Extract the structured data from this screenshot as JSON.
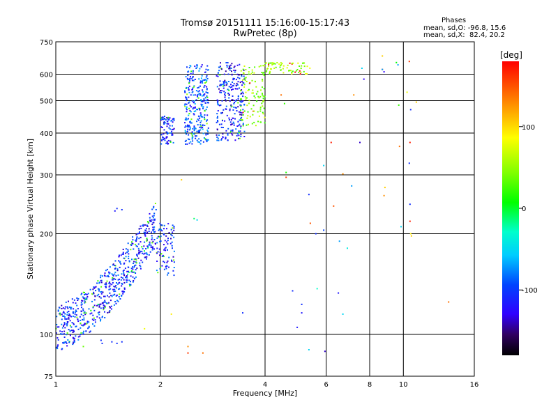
{
  "chart_data": {
    "type": "scatter",
    "title": "Tromsø 20151111 15:16:00-15:17:43",
    "subtitle": "RwPretec (8p)",
    "xlabel": "Frequency [MHz]",
    "ylabel": "Stationary phase Virtual Height [km]",
    "x_scale": "log",
    "y_scale": "log",
    "xlim": [
      1,
      16
    ],
    "ylim": [
      75,
      750
    ],
    "x_ticks": [
      1,
      2,
      4,
      6,
      8,
      10,
      16
    ],
    "y_ticks": [
      75,
      100,
      200,
      300,
      400,
      500,
      600,
      750
    ],
    "grid": true,
    "phase_stats": {
      "heading": "Phases",
      "line_o": "mean, sd,O: -96.8, 15.6",
      "line_x": "mean, sd,X:  82.4, 20.2"
    },
    "colorbar": {
      "label": "[deg]",
      "ticks": [
        100,
        0,
        -100
      ],
      "range": [
        -180,
        180
      ]
    },
    "clusters": [
      {
        "trace": "low_layer",
        "x": [
          1.0,
          1.95
        ],
        "y": [
          103,
          262
        ],
        "phase": -100,
        "n": 650
      },
      {
        "trace": "low_layer_tail",
        "x": [
          1.95,
          2.2
        ],
        "y": [
          150,
          215
        ],
        "phase": -100,
        "n": 90
      },
      {
        "trace": "f_layer_a",
        "x": [
          2.0,
          2.2
        ],
        "y": [
          370,
          450
        ],
        "phase": -100,
        "n": 80
      },
      {
        "trace": "f_layer_b",
        "x": [
          2.35,
          2.75
        ],
        "y": [
          370,
          640
        ],
        "phase": -85,
        "n": 300
      },
      {
        "trace": "f_layer_c",
        "x": [
          2.9,
          3.5
        ],
        "y": [
          380,
          650
        ],
        "phase": -105,
        "n": 260
      },
      {
        "trace": "f_layer_d",
        "x": [
          3.4,
          4.0
        ],
        "y": [
          420,
          640
        ],
        "phase": 50,
        "n": 110
      },
      {
        "trace": "f_layer_top",
        "x": [
          4.0,
          5.4
        ],
        "y": [
          600,
          650
        ],
        "phase": 60,
        "n": 70
      }
    ],
    "isolated_points": [
      {
        "x": 4.55,
        "y": 490,
        "phase": 20
      },
      {
        "x": 4.6,
        "y": 305,
        "phase": 10
      },
      {
        "x": 4.6,
        "y": 295,
        "phase": 160
      },
      {
        "x": 4.45,
        "y": 520,
        "phase": 140
      },
      {
        "x": 5.35,
        "y": 262,
        "phase": -100
      },
      {
        "x": 5.4,
        "y": 215,
        "phase": 150
      },
      {
        "x": 5.6,
        "y": 200,
        "phase": -100
      },
      {
        "x": 5.9,
        "y": 205,
        "phase": -90
      },
      {
        "x": 5.9,
        "y": 320,
        "phase": -40
      },
      {
        "x": 6.2,
        "y": 375,
        "phase": 170
      },
      {
        "x": 6.3,
        "y": 242,
        "phase": 150
      },
      {
        "x": 6.55,
        "y": 190,
        "phase": -60
      },
      {
        "x": 6.7,
        "y": 302,
        "phase": 130
      },
      {
        "x": 7.1,
        "y": 278,
        "phase": -60
      },
      {
        "x": 7.2,
        "y": 520,
        "phase": 130
      },
      {
        "x": 7.5,
        "y": 375,
        "phase": -130
      },
      {
        "x": 7.7,
        "y": 580,
        "phase": -120
      },
      {
        "x": 7.6,
        "y": 625,
        "phase": -40
      },
      {
        "x": 8.7,
        "y": 680,
        "phase": 110
      },
      {
        "x": 8.7,
        "y": 620,
        "phase": 160
      },
      {
        "x": 8.8,
        "y": 610,
        "phase": -120
      },
      {
        "x": 8.85,
        "y": 275,
        "phase": 110
      },
      {
        "x": 8.8,
        "y": 260,
        "phase": 130
      },
      {
        "x": 9.55,
        "y": 650,
        "phase": 0
      },
      {
        "x": 9.65,
        "y": 640,
        "phase": -60
      },
      {
        "x": 9.7,
        "y": 485,
        "phase": 20
      },
      {
        "x": 9.75,
        "y": 365,
        "phase": 140
      },
      {
        "x": 9.85,
        "y": 210,
        "phase": -40
      },
      {
        "x": 10.25,
        "y": 530,
        "phase": 90
      },
      {
        "x": 10.4,
        "y": 655,
        "phase": 160
      },
      {
        "x": 10.5,
        "y": 470,
        "phase": -100
      },
      {
        "x": 10.45,
        "y": 375,
        "phase": 170
      },
      {
        "x": 10.4,
        "y": 325,
        "phase": -100
      },
      {
        "x": 10.45,
        "y": 245,
        "phase": -100
      },
      {
        "x": 10.45,
        "y": 218,
        "phase": 170
      },
      {
        "x": 10.5,
        "y": 200,
        "phase": 100
      },
      {
        "x": 10.55,
        "y": 197,
        "phase": 110
      },
      {
        "x": 10.9,
        "y": 495,
        "phase": 110
      },
      {
        "x": 13.5,
        "y": 125,
        "phase": 140
      },
      {
        "x": 2.3,
        "y": 290,
        "phase": 110
      },
      {
        "x": 2.5,
        "y": 222,
        "phase": -10
      },
      {
        "x": 2.55,
        "y": 220,
        "phase": -40
      },
      {
        "x": 2.4,
        "y": 92,
        "phase": 130
      },
      {
        "x": 2.4,
        "y": 88,
        "phase": 160
      },
      {
        "x": 2.65,
        "y": 88,
        "phase": 140
      },
      {
        "x": 1.8,
        "y": 104,
        "phase": 90
      },
      {
        "x": 2.15,
        "y": 115,
        "phase": 100
      },
      {
        "x": 1.2,
        "y": 92,
        "phase": 40
      },
      {
        "x": 1.5,
        "y": 238,
        "phase": -100
      },
      {
        "x": 1.55,
        "y": 236,
        "phase": -100
      },
      {
        "x": 1.48,
        "y": 234,
        "phase": -110
      },
      {
        "x": 1.35,
        "y": 96,
        "phase": -100
      },
      {
        "x": 1.36,
        "y": 94,
        "phase": -100
      },
      {
        "x": 1.45,
        "y": 95,
        "phase": -100
      },
      {
        "x": 1.5,
        "y": 94,
        "phase": -100
      },
      {
        "x": 1.55,
        "y": 95,
        "phase": -100
      },
      {
        "x": 3.45,
        "y": 116,
        "phase": -100
      },
      {
        "x": 4.8,
        "y": 135,
        "phase": -100
      },
      {
        "x": 4.95,
        "y": 105,
        "phase": -110
      },
      {
        "x": 5.1,
        "y": 123,
        "phase": -100
      },
      {
        "x": 5.1,
        "y": 116,
        "phase": -110
      },
      {
        "x": 5.35,
        "y": 90,
        "phase": -40
      },
      {
        "x": 5.65,
        "y": 137,
        "phase": -20
      },
      {
        "x": 5.95,
        "y": 89,
        "phase": -130
      },
      {
        "x": 6.5,
        "y": 133,
        "phase": -110
      },
      {
        "x": 6.7,
        "y": 115,
        "phase": -40
      },
      {
        "x": 6.9,
        "y": 181,
        "phase": -30
      },
      {
        "x": 8.7,
        "y": 620,
        "phase": -60
      }
    ]
  }
}
